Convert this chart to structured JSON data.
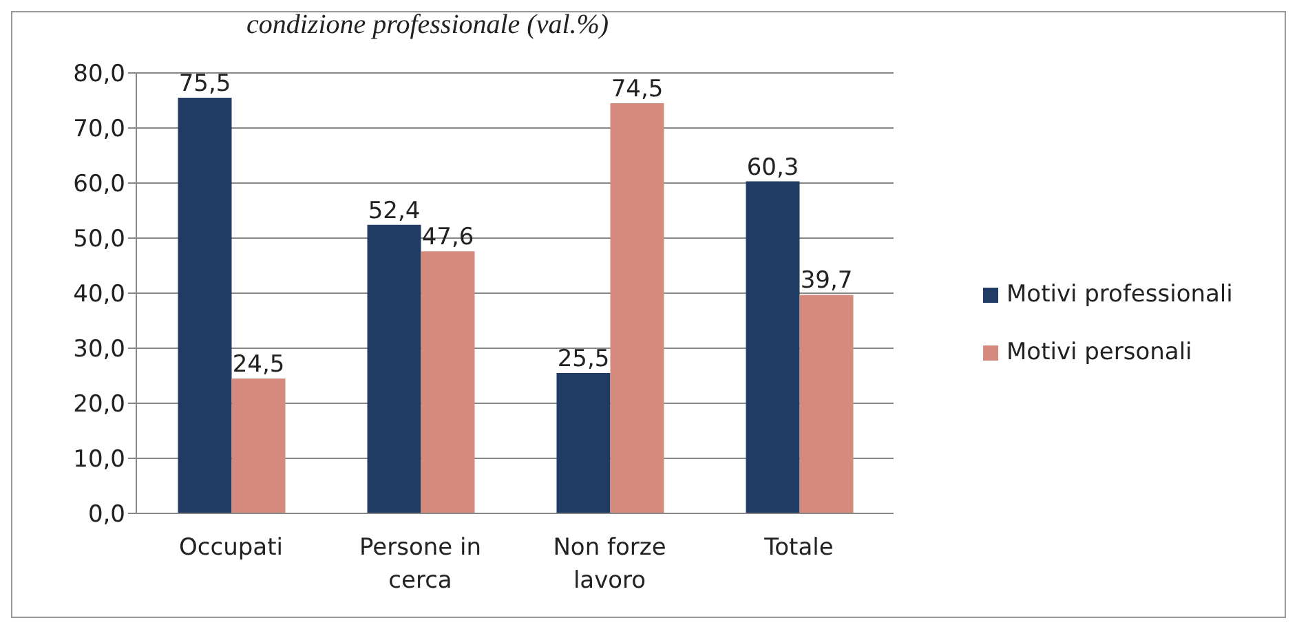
{
  "chart_data": {
    "type": "bar",
    "title": "condizione professionale (val.%)",
    "categories": [
      "Occupati",
      "Persone in cerca",
      "Non forze lavoro",
      "Totale"
    ],
    "series": [
      {
        "name": "Motivi professionali",
        "color": "#203c64",
        "values": [
          75.5,
          52.4,
          25.5,
          60.3
        ],
        "value_labels": [
          "75,5",
          "52,4",
          "25,5",
          "60,3"
        ]
      },
      {
        "name": "Motivi personali",
        "color": "#d48a7c",
        "values": [
          24.5,
          47.6,
          74.5,
          39.7
        ],
        "value_labels": [
          "24,5",
          "47,6",
          "74,5",
          "39,7"
        ]
      }
    ],
    "ylim": [
      0,
      80
    ],
    "yticks": [
      {
        "value": 0,
        "label": "0,0"
      },
      {
        "value": 10,
        "label": "10,0"
      },
      {
        "value": 20,
        "label": "20,0"
      },
      {
        "value": 30,
        "label": "30,0"
      },
      {
        "value": 40,
        "label": "40,0"
      },
      {
        "value": 50,
        "label": "50,0"
      },
      {
        "value": 60,
        "label": "60,0"
      },
      {
        "value": 70,
        "label": "70,0"
      },
      {
        "value": 80,
        "label": "80,0"
      }
    ],
    "grid": "y",
    "legend": "right"
  }
}
